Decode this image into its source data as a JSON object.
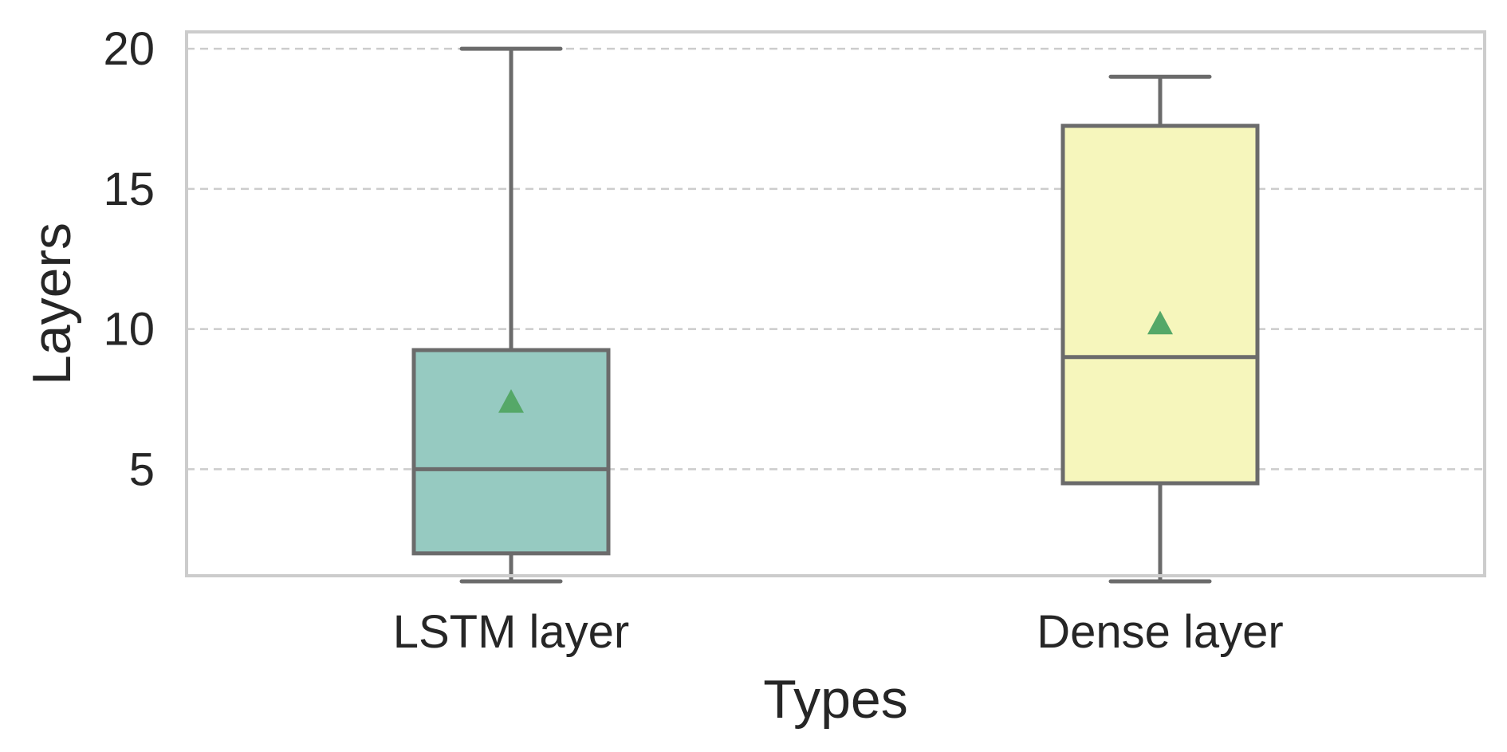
{
  "chart_data": {
    "type": "box",
    "title": "",
    "xlabel": "Types",
    "ylabel": "Layers",
    "ylim": [
      1.2,
      20.6
    ],
    "yticks": [
      5,
      10,
      15,
      20
    ],
    "grid": "y-dashed",
    "legend": "none",
    "categories": [
      "LSTM layer",
      "Dense layer"
    ],
    "boxes": [
      {
        "name": "LSTM layer",
        "whisker_low": 1,
        "q1": 2,
        "median": 5,
        "q3": 9.25,
        "whisker_high": 20,
        "mean": 7.4,
        "color": "#96cac1"
      },
      {
        "name": "Dense layer",
        "whisker_low": 1,
        "q1": 4.5,
        "median": 9,
        "q3": 17.25,
        "whisker_high": 19,
        "mean": 10.2,
        "color": "#f6f6bc"
      }
    ],
    "mean_marker_color": "#55a868",
    "line_color": "#6b6b6b"
  }
}
